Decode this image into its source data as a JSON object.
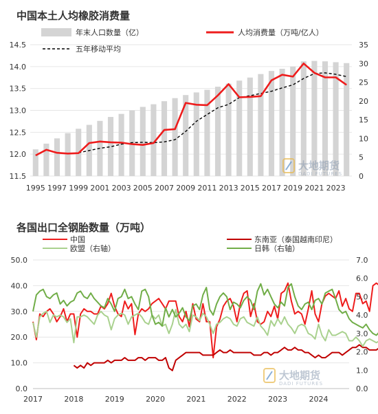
{
  "watermark": {
    "name": "大地期货",
    "sub": "DADI FUTURES"
  },
  "chart_data": [
    {
      "type": "bar+line",
      "title": "中国本土人均橡胶消费量",
      "legend_position": "top",
      "x": [
        "1995",
        "1996",
        "1997",
        "1998",
        "1999",
        "2000",
        "2001",
        "2002",
        "2003",
        "2004",
        "2005",
        "2006",
        "2007",
        "2008",
        "2009",
        "2010",
        "2011",
        "2012",
        "2013",
        "2014",
        "2015",
        "2016",
        "2017",
        "2018",
        "2019",
        "2020",
        "2021",
        "2022",
        "2023",
        "2024"
      ],
      "x_tick_labels": [
        "1995",
        "1997",
        "1999",
        "2001",
        "2003",
        "2005",
        "2007",
        "2009",
        "2011",
        "2013",
        "2015",
        "2017",
        "2019",
        "2021",
        "2023"
      ],
      "y_left": {
        "ylim": [
          11.5,
          14.5
        ],
        "ticks": [
          "11.5",
          "12.0",
          "12.5",
          "13.0",
          "13.5",
          "14.0",
          "14.5"
        ]
      },
      "y_right": {
        "ylim": [
          0,
          35
        ],
        "ticks": [
          "0",
          "5",
          "10",
          "15",
          "20",
          "25",
          "30",
          "35"
        ]
      },
      "series": [
        {
          "name": "年末人口数量（亿）",
          "type": "bar",
          "axis": "left",
          "color": "#d4d4d4",
          "values": [
            12.11,
            12.24,
            12.36,
            12.48,
            12.58,
            12.67,
            12.76,
            12.85,
            12.92,
            13.0,
            13.08,
            13.14,
            13.21,
            13.28,
            13.35,
            13.41,
            13.47,
            13.54,
            13.61,
            13.68,
            13.75,
            13.83,
            13.9,
            13.95,
            14.0,
            14.12,
            14.13,
            14.12,
            14.1,
            14.08
          ]
        },
        {
          "name": "人均消费量（万吨/亿人）",
          "type": "line",
          "axis": "right",
          "color": "#ee1c1c",
          "values": [
            5.5,
            7.0,
            6.2,
            6.0,
            6.1,
            8.8,
            9.2,
            9.0,
            8.9,
            8.5,
            8.3,
            8.8,
            12.3,
            12.5,
            19.5,
            19.0,
            18.9,
            21.5,
            24.5,
            21.0,
            21.1,
            21.3,
            25.5,
            27.0,
            26.5,
            30.0,
            27.5,
            26.3,
            26.3,
            24.3
          ]
        },
        {
          "name": "五年移动平均",
          "type": "line",
          "axis": "right",
          "color": "#000000",
          "dash": true,
          "values": [
            null,
            null,
            null,
            null,
            6.2,
            6.8,
            7.4,
            7.8,
            8.5,
            8.9,
            9.0,
            8.9,
            9.1,
            9.7,
            11.9,
            14.6,
            16.4,
            18.2,
            19.1,
            20.9,
            21.4,
            22.0,
            22.6,
            23.5,
            24.3,
            26.0,
            27.3,
            27.5,
            27.1,
            26.5
          ]
        }
      ]
    },
    {
      "type": "line",
      "title": "各国出口全钢胎数量（万吨）",
      "legend_position": "top",
      "x_range": [
        2017,
        2024.75
      ],
      "x_tick_labels": [
        "2017",
        "2018",
        "2019",
        "2020",
        "2021",
        "2022",
        "2023",
        "2024"
      ],
      "y_left": {
        "ylim": [
          0,
          50
        ],
        "ticks": [
          "0.0",
          "10.0",
          "20.0",
          "30.0",
          "40.0",
          "50.0"
        ]
      },
      "y_right": {
        "ylim": [
          0,
          7
        ],
        "ticks": [
          "0.0",
          "1.0",
          "2.0",
          "3.0",
          "4.0",
          "5.0",
          "6.0",
          "7.0"
        ]
      },
      "series": [
        {
          "name": "中国",
          "axis": "left",
          "color": "#ee1c1c",
          "x_start": 2017.0,
          "values": [
            26,
            19,
            29,
            28,
            30,
            31,
            29,
            26,
            28,
            31,
            26,
            29,
            29,
            20,
            29,
            31,
            30,
            30,
            29,
            29,
            32,
            31,
            33,
            37,
            32,
            29,
            28,
            34,
            31,
            33,
            21,
            29,
            31,
            30,
            31,
            33,
            34,
            35,
            33,
            31,
            34,
            34,
            34,
            28,
            26,
            30,
            24,
            33,
            27,
            26,
            33,
            26,
            26,
            12,
            24,
            27,
            32,
            34,
            35,
            32,
            26,
            33,
            37,
            38,
            28,
            33,
            26,
            25,
            26,
            30,
            28,
            32,
            27,
            37,
            38,
            41,
            34,
            29,
            30,
            29,
            25,
            31,
            38,
            29,
            26,
            33,
            36,
            37,
            36,
            35,
            38,
            32,
            35,
            31,
            30,
            37,
            37,
            33,
            34,
            30,
            40,
            41,
            40,
            41,
            38,
            42,
            42,
            41,
            37,
            38,
            35,
            40,
            39,
            36,
            43,
            38,
            41,
            37
          ]
        },
        {
          "name": "东南亚（泰国越南印尼）",
          "axis": "left",
          "color": "#c00000",
          "x_start": 2018.0,
          "values": [
            9,
            8,
            9,
            8,
            10,
            9,
            10,
            10,
            10,
            10,
            11,
            10,
            11,
            11,
            11,
            12,
            11,
            11,
            11,
            12,
            12,
            11,
            12,
            12,
            12,
            11,
            11,
            12,
            8,
            7,
            11,
            12,
            13,
            14,
            14,
            14,
            14,
            14,
            13,
            13,
            13,
            13,
            14,
            15,
            14,
            14,
            15,
            14,
            14,
            14,
            14,
            14,
            14,
            13,
            13,
            13,
            14,
            14,
            13,
            14,
            14,
            15,
            16,
            15,
            15,
            16,
            15,
            15,
            14,
            14,
            13,
            12,
            13,
            12,
            12,
            13,
            14,
            14,
            14,
            13,
            14,
            15,
            16,
            16,
            17,
            16,
            16,
            15,
            15,
            15,
            16,
            17,
            16,
            15,
            15,
            16,
            17,
            16,
            15,
            16,
            16,
            15,
            14,
            14,
            15,
            16,
            17,
            18
          ]
        },
        {
          "name": "欧盟（右轴）",
          "axis": "right",
          "color": "#a9d18e",
          "x_start": 2017.0,
          "values": [
            3.6,
            2.8,
            3.9,
            4.1,
            4.2,
            3.6,
            4.0,
            3.9,
            4.0,
            3.9,
            3.6,
            3.8,
            2.5,
            3.9,
            3.9,
            4.0,
            3.9,
            3.7,
            3.5,
            4.0,
            4.2,
            4.0,
            3.9,
            3.2,
            3.8,
            4.0,
            4.1,
            4.0,
            3.5,
            3.9,
            4.0,
            4.1,
            3.9,
            3.6,
            3.5,
            4.0,
            3.8,
            4.0,
            3.4,
            3.5,
            3.0,
            3.5,
            4.3,
            3.5,
            3.3,
            3.5,
            3.1,
            4.0,
            3.9,
            3.7,
            4.1,
            3.9,
            3.5,
            3.0,
            3.5,
            3.6,
            3.8,
            3.9,
            3.8,
            3.5,
            3.4,
            3.8,
            3.9,
            3.6,
            3.5,
            3.4,
            3.9,
            3.4,
            3.2,
            2.9,
            3.7,
            3.4,
            3.8,
            3.5,
            3.9,
            3.5,
            3.3,
            3.0,
            3.4,
            3.5,
            3.4,
            3.0,
            2.9,
            2.7,
            3.5,
            2.9,
            2.6,
            3.2,
            2.9,
            2.9,
            3.0,
            3.1,
            3.0,
            2.6,
            2.6,
            2.8,
            2.6,
            2.3,
            2.6,
            2.7,
            2.6,
            2.5,
            2.6,
            2.5,
            2.7,
            2.8,
            2.9,
            2.9,
            2.8,
            2.7,
            2.6,
            2.8,
            2.9,
            2.7,
            2.9,
            3.0,
            2.8,
            2.9
          ]
        },
        {
          "name": "日韩（右轴）",
          "axis": "right",
          "color": "#70ad47",
          "x_start": 2017.0,
          "values": [
            4.2,
            5.1,
            5.3,
            5.4,
            5.0,
            4.9,
            5.1,
            5.2,
            4.6,
            4.8,
            4.5,
            4.7,
            4.8,
            5.2,
            5.3,
            5.0,
            4.9,
            5.2,
            4.9,
            4.7,
            4.5,
            4.4,
            4.9,
            4.6,
            4.2,
            4.9,
            5.0,
            5.4,
            4.9,
            5.0,
            4.6,
            4.3,
            5.3,
            5.4,
            5.0,
            4.0,
            3.5,
            3.6,
            3.4,
            4.4,
            3.9,
            4.3,
            3.9,
            4.1,
            4.4,
            3.9,
            3.7,
            4.5,
            4.6,
            4.3,
            5.1,
            5.5,
            4.3,
            4.0,
            4.6,
            5.0,
            5.2,
            5.0,
            4.3,
            4.7,
            4.6,
            4.4,
            4.8,
            5.0,
            4.8,
            4.3,
            5.3,
            5.7,
            5.1,
            5.4,
            5.0,
            4.6,
            4.4,
            4.7,
            4.5,
            5.5,
            5.7,
            5.0,
            4.5,
            4.3,
            4.6,
            4.7,
            4.3,
            4.8,
            4.9,
            4.6,
            5.2,
            5.3,
            5.4,
            4.9,
            4.3,
            4.1,
            4.2,
            3.8,
            3.6,
            3.5,
            3.4,
            3.3,
            3.5,
            3.2,
            3.0,
            2.9,
            3.1,
            2.8,
            3.0,
            3.5,
            3.6,
            4.0,
            3.7,
            3.4,
            3.5,
            3.2,
            3.3,
            3.4,
            3.3,
            3.2,
            3.4
          ]
        }
      ]
    }
  ]
}
